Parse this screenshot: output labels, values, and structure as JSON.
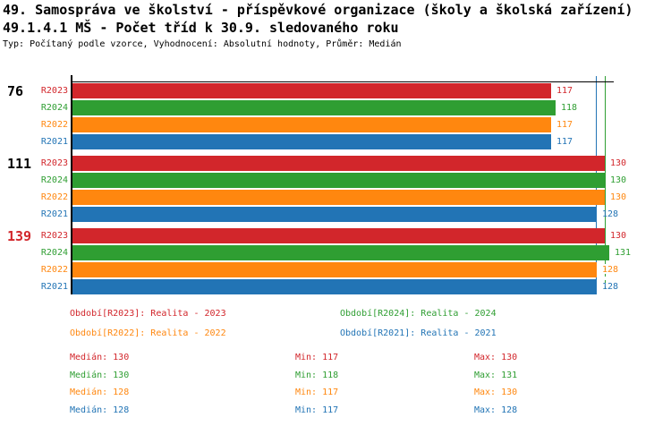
{
  "header": {
    "title": "49. Samospráva ve školství - příspěvkové organizace (školy a školská zařízení)",
    "subtitle": "49.1.4.1 MŠ - Počet tříd k 30.9. sledovaného roku",
    "meta": "Typ: Počítaný podle vzorce, Vyhodnocení: Absolutní hodnoty, Průměr: Medián"
  },
  "colors": {
    "R2023": "#D2262B",
    "R2024": "#2F9E32",
    "R2022": "#FF870F",
    "R2021": "#2274B5",
    "axis": "#000000",
    "group_label_default": "#000000",
    "group_label_highlight": "#D2262B"
  },
  "chart_data": {
    "type": "bar",
    "orientation": "horizontal",
    "x_origin_label": "0",
    "xlim": [
      0,
      132
    ],
    "grid": false,
    "series": [
      "R2023",
      "R2024",
      "R2022",
      "R2021"
    ],
    "groups": [
      {
        "label": "76",
        "highlighted": false,
        "values": [
          117,
          118,
          117,
          117
        ]
      },
      {
        "label": "111",
        "highlighted": false,
        "values": [
          130,
          130,
          130,
          128
        ]
      },
      {
        "label": "139",
        "highlighted": true,
        "values": [
          130,
          131,
          128,
          128
        ]
      }
    ],
    "reference_lines": [
      {
        "name": "median-line-r2021",
        "series": "R2021",
        "value": 128,
        "style": "solid"
      },
      {
        "name": "median-line-r2024",
        "series": "R2024",
        "value": 130,
        "style": "solid-with-dashed-tail"
      }
    ]
  },
  "legend": {
    "items": [
      {
        "series": "R2023",
        "label": "Období[R2023]: Realita - 2023"
      },
      {
        "series": "R2024",
        "label": "Období[R2024]: Realita - 2024"
      },
      {
        "series": "R2022",
        "label": "Období[R2022]: Realita - 2022"
      },
      {
        "series": "R2021",
        "label": "Období[R2021]: Realita - 2021"
      }
    ]
  },
  "stats": {
    "median_label": "Medián",
    "min_label": "Min",
    "max_label": "Max",
    "rows": [
      {
        "series": "R2023",
        "median": 130,
        "min": 117,
        "max": 130
      },
      {
        "series": "R2024",
        "median": 130,
        "min": 118,
        "max": 131
      },
      {
        "series": "R2022",
        "median": 128,
        "min": 117,
        "max": 130
      },
      {
        "series": "R2021",
        "median": 128,
        "min": 117,
        "max": 128
      }
    ]
  }
}
